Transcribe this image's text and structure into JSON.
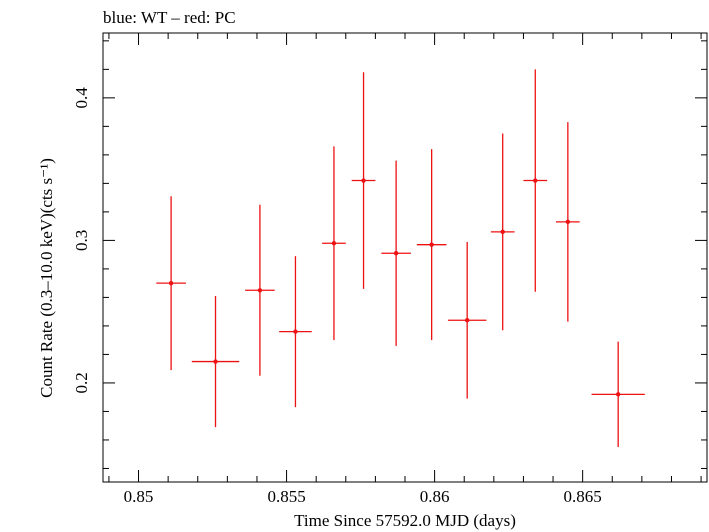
{
  "chart_data": {
    "type": "scatter",
    "title": "blue: WT – red: PC",
    "xlabel": "Time Since 57592.0 MJD (days)",
    "ylabel": "Count Rate (0.3–10.0 keV)(cts s⁻¹)",
    "xlim": [
      0.8488,
      0.8692
    ],
    "ylim": [
      0.1305,
      0.4455
    ],
    "xticks": [
      0.85,
      0.855,
      0.86,
      0.865
    ],
    "xtick_labels": [
      "0.85",
      "0.855",
      "0.86",
      "0.865"
    ],
    "yticks": [
      0.2,
      0.3,
      0.4
    ],
    "ytick_labels": [
      "0.2",
      "0.3",
      "0.4"
    ],
    "grid": false,
    "series": [
      {
        "color": "#ee1111",
        "points": [
          {
            "x": 0.8511,
            "y": 0.27,
            "xerr": 0.0005,
            "yerr_low": 0.061,
            "yerr_high": 0.061
          },
          {
            "x": 0.8526,
            "y": 0.215,
            "xerr": 0.0008,
            "yerr_low": 0.046,
            "yerr_high": 0.046
          },
          {
            "x": 0.8541,
            "y": 0.265,
            "xerr": 0.0005,
            "yerr_low": 0.06,
            "yerr_high": 0.06
          },
          {
            "x": 0.8553,
            "y": 0.236,
            "xerr": 0.00055,
            "yerr_low": 0.053,
            "yerr_high": 0.053
          },
          {
            "x": 0.8566,
            "y": 0.298,
            "xerr": 0.0004,
            "yerr_low": 0.068,
            "yerr_high": 0.068
          },
          {
            "x": 0.8576,
            "y": 0.342,
            "xerr": 0.0004,
            "yerr_low": 0.076,
            "yerr_high": 0.076
          },
          {
            "x": 0.8587,
            "y": 0.291,
            "xerr": 0.0005,
            "yerr_low": 0.065,
            "yerr_high": 0.065
          },
          {
            "x": 0.8599,
            "y": 0.297,
            "xerr": 0.0005,
            "yerr_low": 0.067,
            "yerr_high": 0.067
          },
          {
            "x": 0.8611,
            "y": 0.244,
            "xerr": 0.00065,
            "yerr_low": 0.055,
            "yerr_high": 0.055
          },
          {
            "x": 0.8623,
            "y": 0.306,
            "xerr": 0.0004,
            "yerr_low": 0.069,
            "yerr_high": 0.069
          },
          {
            "x": 0.8634,
            "y": 0.342,
            "xerr": 0.0004,
            "yerr_low": 0.078,
            "yerr_high": 0.078
          },
          {
            "x": 0.8645,
            "y": 0.313,
            "xerr": 0.0004,
            "yerr_low": 0.07,
            "yerr_high": 0.07
          },
          {
            "x": 0.8662,
            "y": 0.192,
            "xerr": 0.0009,
            "yerr_low": 0.037,
            "yerr_high": 0.037
          }
        ]
      }
    ]
  }
}
